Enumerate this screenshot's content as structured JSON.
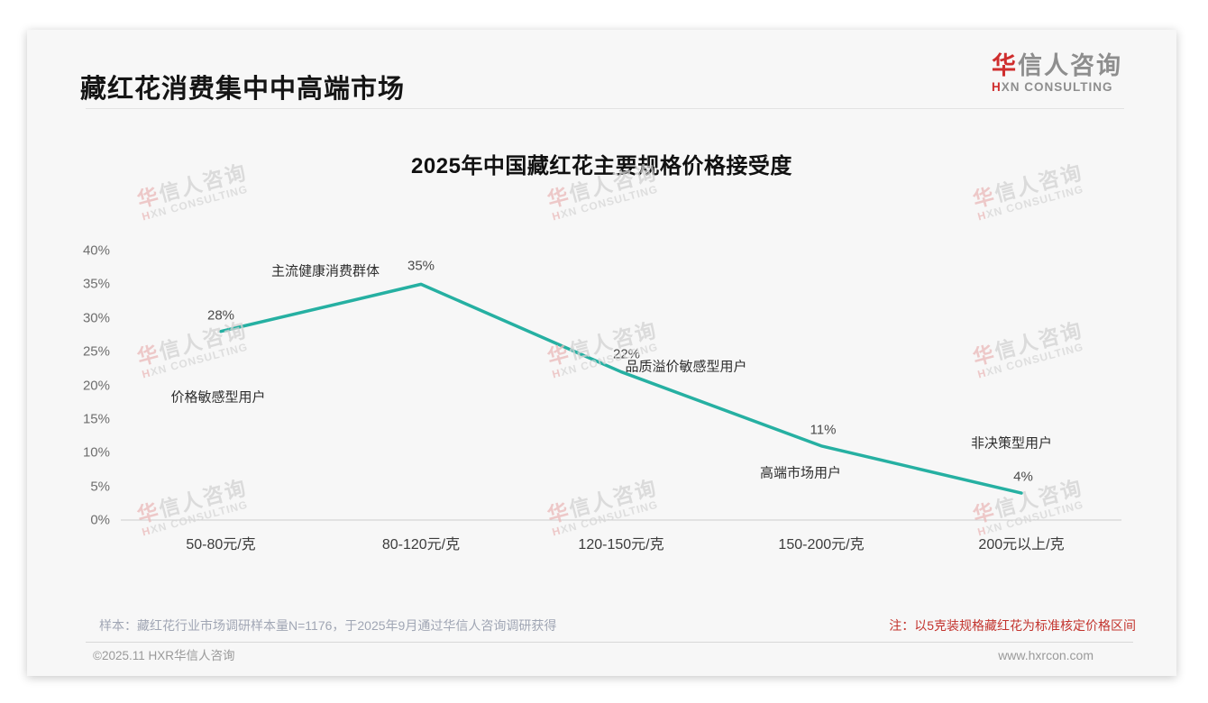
{
  "page": {
    "header": {
      "title": "藏红花消费集中中高端市场",
      "logo": {
        "cn_first": "华",
        "cn_rest": "信人咨询",
        "en_first": "H",
        "en_rest": "XN CONSULTING"
      }
    },
    "footer": {
      "sample_note": "样本：藏红花行业市场调研样本量N=1176，于2025年9月通过华信人咨询调研获得",
      "price_note": "注：以5克装规格藏红花为标准核定价格区间",
      "copyright": "©2025.11 HXR华信人咨询",
      "website": "www.hxrcon.com"
    },
    "watermark": {
      "cn_first": "华",
      "cn_rest": "信人咨询",
      "en_first": "H",
      "en_rest": "XN CONSULTING"
    }
  },
  "chart_data": {
    "type": "line",
    "title": "2025年中国藏红花主要规格价格接受度",
    "categories": [
      "50-80元/克",
      "80-120元/克",
      "120-150元/克",
      "150-200元/克",
      "200元以上/克"
    ],
    "values": [
      28,
      35,
      22,
      11,
      4
    ],
    "value_labels": [
      "28%",
      "35%",
      "22%",
      "11%",
      "4%"
    ],
    "point_annotations": [
      "价格敏感型用户",
      "主流健康消费群体",
      "品质溢价敏感型用户",
      "高端市场用户",
      "非决策型用户"
    ],
    "y_ticks": [
      40,
      35,
      30,
      25,
      20,
      15,
      10,
      5,
      0
    ],
    "y_tick_labels": [
      "40%",
      "35%",
      "30%",
      "25%",
      "20%",
      "15%",
      "10%",
      "5%",
      "0%"
    ],
    "ylim": [
      0,
      40
    ],
    "xlabel": "",
    "ylabel": "",
    "grid": false,
    "legend": false,
    "line_color": "#26b0a2",
    "axis_color": "#cdcdcd"
  }
}
